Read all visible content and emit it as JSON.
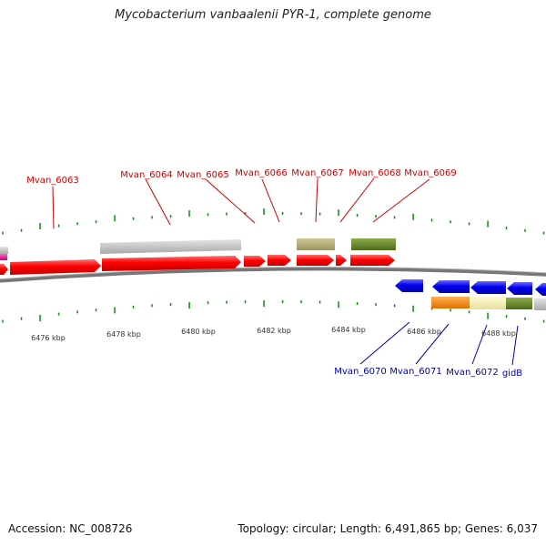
{
  "title": "Mycobacterium vanbaalenii PYR-1, complete genome",
  "footer": {
    "accession": "Accession: NC_008726",
    "stats": "Topology: circular; Length: 6,491,865 bp; Genes: 6,037"
  },
  "colors": {
    "forward_gene": "#ff0000",
    "reverse_gene": "#0000ee",
    "tick": "#118811",
    "backbone": "#777777",
    "upper_label": "#cc0000",
    "lower_label": "#0000aa"
  },
  "scale": {
    "ticks": [
      {
        "label": "6476 kbp"
      },
      {
        "label": "6478 kbp"
      },
      {
        "label": "6480 kbp"
      },
      {
        "label": "6482 kbp"
      },
      {
        "label": "6484 kbp"
      },
      {
        "label": "6486 kbp"
      },
      {
        "label": "6488 kbp"
      }
    ]
  },
  "genes_upper": [
    {
      "name": "Mvan_6063"
    },
    {
      "name": "Mvan_6064"
    },
    {
      "name": "Mvan_6065"
    },
    {
      "name": "Mvan_6066"
    },
    {
      "name": "Mvan_6067"
    },
    {
      "name": "Mvan_6068"
    },
    {
      "name": "Mvan_6069"
    }
  ],
  "genes_lower": [
    {
      "name": "Mvan_6070"
    },
    {
      "name": "Mvan_6071"
    },
    {
      "name": "Mvan_6072"
    },
    {
      "name": "gidB"
    }
  ]
}
